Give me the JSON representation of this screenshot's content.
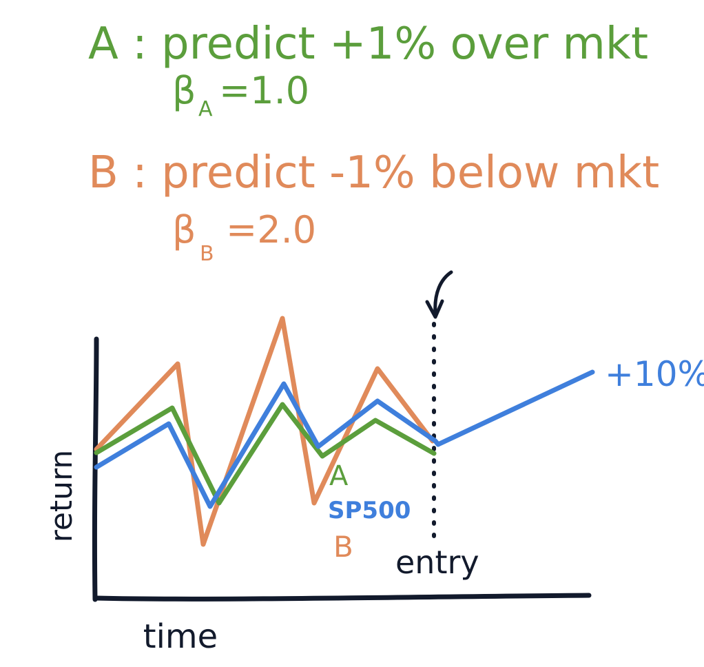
{
  "colors": {
    "green": "#5b9e3c",
    "orange": "#e08a5a",
    "blue": "#3f7fdc",
    "ink": "#121a2c"
  },
  "notes": {
    "a_line": "A : predict +1% over mkt",
    "a_beta_symbol": "β",
    "a_beta_sub": "A",
    "a_beta_value": "=1.0",
    "b_line": "B : predict -1% below mkt",
    "b_beta_symbol": "β",
    "b_beta_sub": "B",
    "b_beta_value": "=2.0"
  },
  "chart": {
    "y_label": "return",
    "x_label": "time",
    "entry_label": "entry",
    "after_entry_label": "+10%",
    "series_labels": {
      "a": "A",
      "sp500": "SP500",
      "b": "B"
    }
  }
}
